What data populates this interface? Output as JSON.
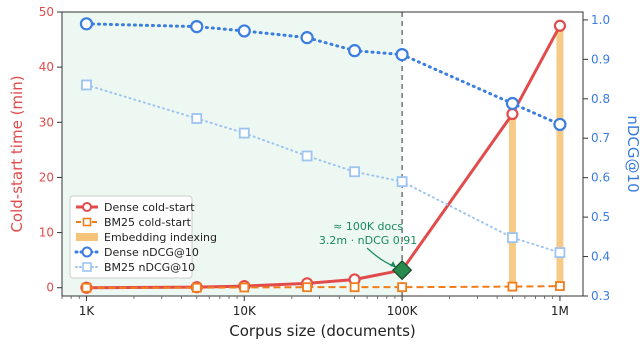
{
  "chart_data": {
    "type": "line",
    "xlabel": "Corpus size (documents)",
    "ylabel_left": "Cold-start time (min)",
    "ylabel_right": "nDCG@10",
    "xscale": "log",
    "xlim": [
      700,
      1400000
    ],
    "ylim_left": [
      -1.5,
      50
    ],
    "ylim_right": [
      0.3,
      1.02
    ],
    "x_ticks": [
      1000,
      10000,
      100000,
      1000000
    ],
    "x_tick_labels": [
      "1K",
      "10K",
      "100K",
      "1M"
    ],
    "y_left_ticks": [
      0,
      10,
      20,
      30,
      40,
      50
    ],
    "y_left_tick_labels": [
      "0",
      "10",
      "20",
      "30",
      "40",
      "50"
    ],
    "y_right_ticks": [
      0.3,
      0.4,
      0.5,
      0.6,
      0.7,
      0.8,
      0.9,
      1.0
    ],
    "y_right_tick_labels": [
      "0.3",
      "0.4",
      "0.5",
      "0.6",
      "0.7",
      "0.8",
      "0.9",
      "1.0"
    ],
    "shaded_region": {
      "from": 700,
      "to": 100000
    },
    "vline_x": 100000,
    "series": [
      {
        "name": "Dense cold-start",
        "axis": "left",
        "style": "line-circle",
        "color": "#e24b4b",
        "x": [
          1000,
          5000,
          10000,
          25000,
          50000,
          100000,
          500000,
          1000000
        ],
        "y": [
          0.0,
          0.1,
          0.3,
          0.8,
          1.5,
          3.2,
          31.5,
          47.5
        ]
      },
      {
        "name": "BM25 cold-start",
        "axis": "left",
        "style": "dashed-square",
        "color": "#f07d1a",
        "x": [
          1000,
          5000,
          10000,
          25000,
          50000,
          100000,
          500000,
          1000000
        ],
        "y": [
          0.0,
          0.0,
          0.05,
          0.1,
          0.1,
          0.1,
          0.2,
          0.3
        ]
      },
      {
        "name": "Embedding indexing",
        "axis": "left",
        "style": "bar",
        "color": "#f5c47a",
        "x": [
          500000,
          1000000
        ],
        "y": [
          31.5,
          47.5
        ]
      },
      {
        "name": "Dense nDCG@10",
        "axis": "right",
        "style": "dotted-circle",
        "color": "#3b7de0",
        "x": [
          1000,
          5000,
          10000,
          25000,
          50000,
          100000,
          500000,
          1000000
        ],
        "y": [
          0.99,
          0.983,
          0.972,
          0.955,
          0.922,
          0.912,
          0.788,
          0.735
        ]
      },
      {
        "name": "BM25 nDCG@10",
        "axis": "right",
        "style": "dotted-square",
        "color": "#9dc4f0",
        "x": [
          1000,
          5000,
          10000,
          25000,
          50000,
          100000,
          500000,
          1000000
        ],
        "y": [
          0.835,
          0.75,
          0.713,
          0.655,
          0.615,
          0.59,
          0.448,
          0.41
        ]
      }
    ],
    "annotation": {
      "lines": [
        "≈ 100K docs",
        "3.2m · nDCG 0.91"
      ],
      "point": {
        "x": 100000,
        "y": 3.2
      },
      "color": "#1a8a5c"
    },
    "legend_position": "lower-left",
    "grid": false
  }
}
